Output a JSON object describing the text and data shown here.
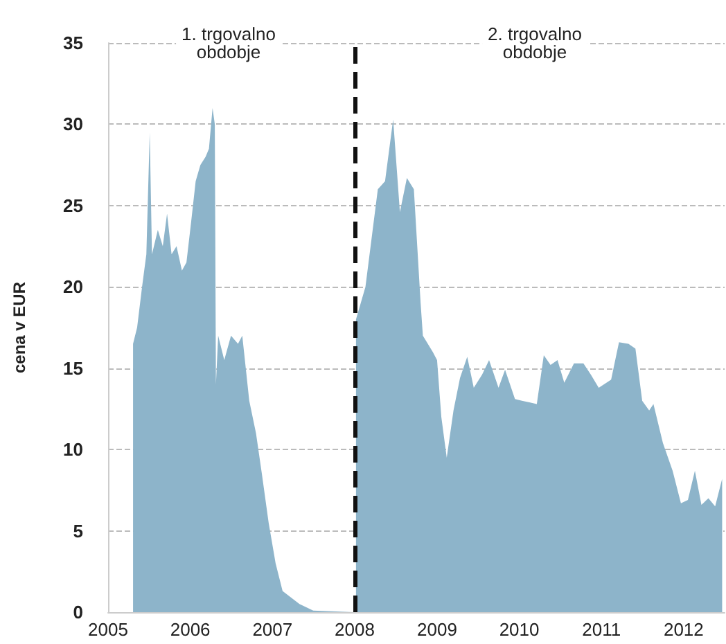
{
  "chart_data": {
    "type": "area",
    "ylabel": "cena v EUR",
    "annotations": [
      "1. trgovalno\nobdobje",
      "2. trgovalno\nobdobje"
    ],
    "xlim": [
      "2005",
      "2012-07"
    ],
    "xticks": [
      "2005",
      "2006",
      "2007",
      "2008",
      "2009",
      "2010",
      "2011",
      "2012"
    ],
    "ylim": [
      0,
      35
    ],
    "yticks": [
      0,
      5,
      10,
      15,
      20,
      25,
      30,
      35
    ],
    "grid": "y",
    "ref_lines": [
      {
        "axis": "x",
        "value": "2008",
        "color": "#111111",
        "line_style": "dashed"
      }
    ],
    "series": [
      {
        "color": "#8db4ca",
        "x": [
          "2005-04-22",
          "2005-05-10",
          "2005-06-01",
          "2005-06-20",
          "2005-07-05",
          "2005-07-15",
          "2005-08-10",
          "2005-09-01",
          "2005-09-20",
          "2005-10-10",
          "2005-11-01",
          "2005-11-25",
          "2005-12-15",
          "2006-01-05",
          "2006-01-25",
          "2006-02-15",
          "2006-03-10",
          "2006-03-25",
          "2006-04-10",
          "2006-04-20",
          "2006-04-25",
          "2006-05-05",
          "2006-06-01",
          "2006-07-01",
          "2006-08-01",
          "2006-08-20",
          "2006-09-20",
          "2006-10-20",
          "2006-11-15",
          "2006-12-15",
          "2007-01-15",
          "2007-02-15",
          "2007-03-15",
          "2007-05-01",
          "2007-07-01",
          "2007-12-31"
        ],
        "values": [
          16.5,
          17.5,
          20,
          22,
          29.5,
          22,
          23.5,
          22.5,
          24.5,
          22,
          22.5,
          21,
          21.5,
          24,
          26.5,
          27.5,
          28,
          28.5,
          31,
          30,
          14,
          17,
          15.5,
          17,
          16.5,
          17,
          13,
          11,
          8.5,
          5.5,
          3,
          1.3,
          1,
          0.5,
          0.1,
          0
        ]
      },
      {
        "color": "#8db4ca",
        "x": [
          "2008-01-07",
          "2008-02-18",
          "2008-04-13",
          "2008-05-15",
          "2008-06-20",
          "2008-07-20",
          "2008-08-20",
          "2008-09-20",
          "2008-10-20",
          "2008-10-30",
          "2008-12-13",
          "2009-01-01",
          "2009-01-20",
          "2009-02-13",
          "2009-03-15",
          "2009-04-13",
          "2009-05-15",
          "2009-06-13",
          "2009-07-20",
          "2009-08-20",
          "2009-10-01",
          "2009-10-30",
          "2009-12-13",
          "2010-01-13",
          "2010-03-20",
          "2010-04-20",
          "2010-05-20",
          "2010-06-20",
          "2010-07-20",
          "2010-09-01",
          "2010-10-13",
          "2010-11-15",
          "2010-12-20",
          "2011-02-13",
          "2011-03-20",
          "2011-05-01",
          "2011-06-01",
          "2011-07-01",
          "2011-08-01",
          "2011-08-20",
          "2011-10-01",
          "2011-11-13",
          "2011-12-20",
          "2012-01-20",
          "2012-02-20",
          "2012-03-20",
          "2012-04-20",
          "2012-05-20",
          "2012-06-20"
        ],
        "values": [
          18,
          20,
          26,
          26.5,
          30.3,
          24.6,
          26.7,
          26,
          19,
          17,
          16,
          15.5,
          12,
          9.5,
          12.4,
          14.4,
          15.7,
          13.8,
          14.6,
          15.5,
          13.8,
          14.9,
          13.1,
          13,
          12.8,
          15.8,
          15.2,
          15.5,
          14.1,
          15.3,
          15.3,
          14.6,
          13.8,
          14.3,
          16.6,
          16.5,
          16.2,
          13,
          12.4,
          12.8,
          10.4,
          8.7,
          6.7,
          6.9,
          8.7,
          6.6,
          7,
          6.5,
          8.2
        ]
      }
    ]
  }
}
